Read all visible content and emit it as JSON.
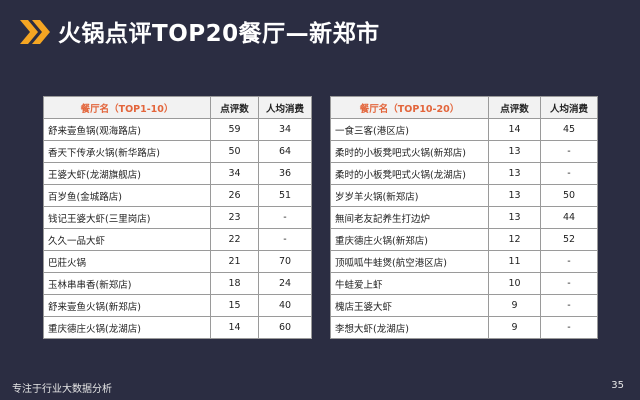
{
  "title": "火锅点评TOP20餐厅—新郑市",
  "colors": {
    "background": "#2b2d42",
    "accent": "#f5a623",
    "header_text": "#e3653b"
  },
  "left_table": {
    "headers": [
      "餐厅名（TOP1-10）",
      "点评数",
      "人均消费"
    ],
    "rows": [
      [
        "舒来壹鱼锅(观海路店)",
        "59",
        "34"
      ],
      [
        "香天下传承火锅(新华路店)",
        "50",
        "64"
      ],
      [
        "王婆大虾(龙湖旗舰店)",
        "34",
        "36"
      ],
      [
        "百岁鱼(金城路店)",
        "26",
        "51"
      ],
      [
        "钱记王婆大虾(三里岗店)",
        "23",
        "-"
      ],
      [
        "久久一品大虾",
        "22",
        "-"
      ],
      [
        "巴莊火锅",
        "21",
        "70"
      ],
      [
        "玉林串串香(新郑店)",
        "18",
        "24"
      ],
      [
        "舒来壹鱼火锅(新郑店)",
        "15",
        "40"
      ],
      [
        "重庆德庄火锅(龙湖店)",
        "14",
        "60"
      ]
    ]
  },
  "right_table": {
    "headers": [
      "餐厅名（TOP10-20）",
      "点评数",
      "人均消费"
    ],
    "rows": [
      [
        "一食三客(港区店)",
        "14",
        "45"
      ],
      [
        "柔时的小板凳吧式火锅(新郑店)",
        "13",
        "-"
      ],
      [
        "柔时的小板凳吧式火锅(龙湖店)",
        "13",
        "-"
      ],
      [
        "岁岁羊火锅(新郑店)",
        "13",
        "50"
      ],
      [
        "無间老友記养生打边炉",
        "13",
        "44"
      ],
      [
        "重庆德庄火锅(新郑店)",
        "12",
        "52"
      ],
      [
        "顶呱呱牛蛙煲(航空港区店)",
        "11",
        "-"
      ],
      [
        "牛蛙爱上虾",
        "10",
        "-"
      ],
      [
        "槐店王婆大虾",
        "9",
        "-"
      ],
      [
        "李想大虾(龙湖店)",
        "9",
        "-"
      ]
    ]
  },
  "footer": {
    "text": "专注于行业大数据分析",
    "page_number": "35"
  }
}
